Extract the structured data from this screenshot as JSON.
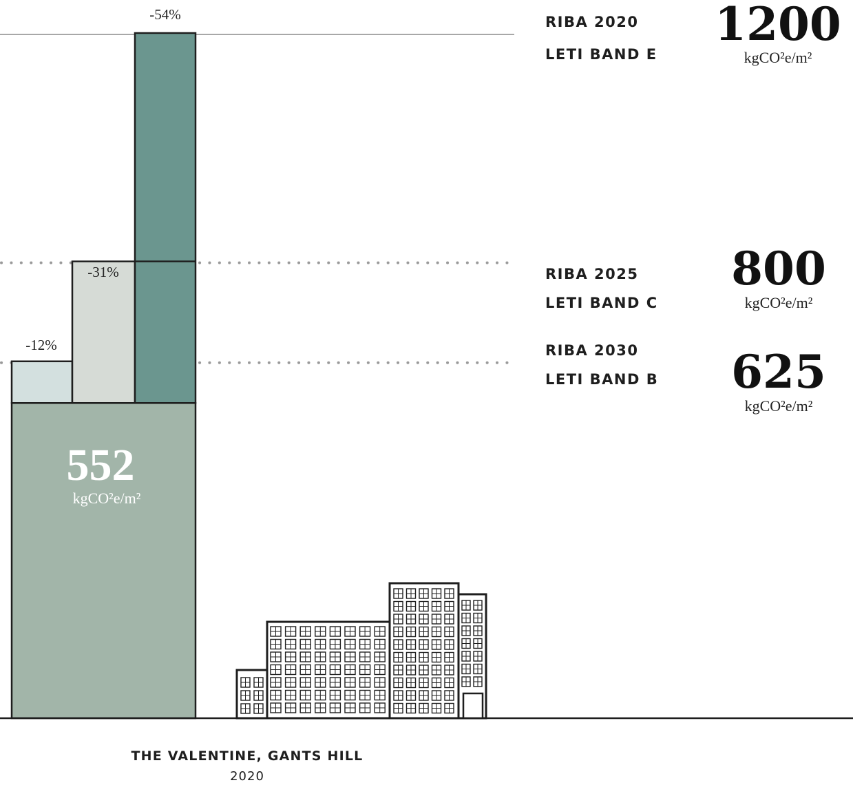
{
  "chart_data": {
    "type": "bar",
    "unit": "kgCO²e/m²",
    "project": {
      "name": "THE VALENTINE, GANTS HILL",
      "year": "2020",
      "value": 552
    },
    "benchmarks": [
      {
        "id": "e",
        "riba": "RIBA 2020",
        "leti": "LETI BAND E",
        "value": 1200,
        "reduction": "-54%"
      },
      {
        "id": "c",
        "riba": "RIBA 2025",
        "leti": "LETI BAND C",
        "value": 800,
        "reduction": "-31%"
      },
      {
        "id": "b",
        "riba": "RIBA 2030",
        "leti": "LETI BAND B",
        "value": 625,
        "reduction": "-12%"
      }
    ],
    "ylim": [
      0,
      1200
    ],
    "grid": false
  },
  "colors": {
    "project_bar": "#a2b5a9",
    "band_e": "#6b968f",
    "band_c": "#d6dbd6",
    "band_b": "#d3e0df",
    "outline": "#1e1e1e",
    "ref_solid": "#a8a8a8",
    "ref_dotted": "#9a9a9a"
  },
  "icons": {
    "illustration": "building-icon"
  }
}
